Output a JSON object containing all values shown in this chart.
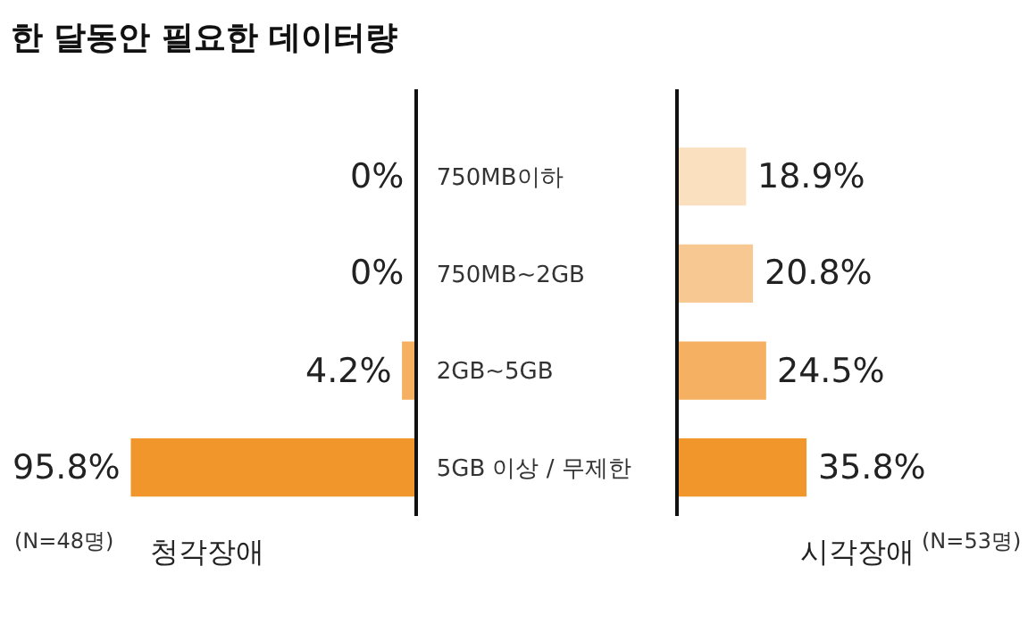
{
  "chart_data": [
    {
      "type": "bar",
      "orientation": "horizontal",
      "title": "한 달동안 필요한 데이터량",
      "xlabel": "청각장애",
      "annotations": [
        "(N=48명)"
      ],
      "categories": [
        "750MB이하",
        "750MB~2GB",
        "2GB~5GB",
        "5GB 이상 / 무제한"
      ],
      "values": [
        0,
        0,
        4.2,
        95.8
      ],
      "value_labels": [
        "0%",
        "0%",
        "4.2%",
        "95.8%"
      ],
      "colors": [
        "#fbe0c0",
        "#f8c892",
        "#f5b062",
        "#f0962a"
      ],
      "xlim": [
        140,
        0
      ],
      "tick_labels": "y"
    },
    {
      "type": "bar",
      "orientation": "horizontal",
      "xlabel": "시각장애",
      "annotations": [
        "(N=53명)"
      ],
      "categories": [
        null,
        null,
        null,
        null
      ],
      "values": [
        18.9,
        20.8,
        24.5,
        35.8
      ],
      "value_labels": [
        "18.9%",
        "20.8%",
        "24.5%",
        "35.8%"
      ],
      "colors": [
        "#fbe0c0",
        "#f8c892",
        "#f5b062",
        "#f0962a"
      ],
      "xlim": [
        0,
        100
      ],
      "tick_labels": false
    }
  ]
}
